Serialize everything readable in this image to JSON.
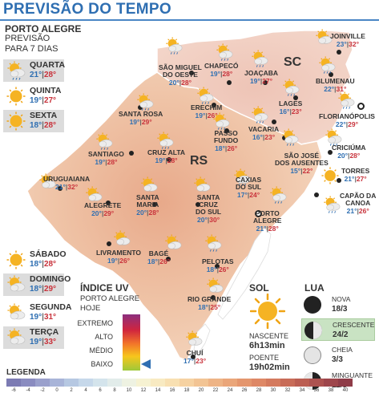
{
  "header": {
    "title": "PREVISÃO DO TEMPO"
  },
  "porto_alegre": {
    "city": "PORTO ALEGRE",
    "sub1": "PREVISÃO",
    "sub2": "PARA 7 DIAS",
    "days": [
      {
        "name": "QUARTA",
        "min": "21°",
        "max": "28°",
        "icon": "sun-rain-icon",
        "boxed": true
      },
      {
        "name": "QUINTA",
        "min": "19°",
        "max": "27°",
        "icon": "sun-icon",
        "boxed": false
      },
      {
        "name": "SEXTA",
        "min": "18°",
        "max": "28°",
        "icon": "sun-icon",
        "boxed": true
      },
      {
        "name": "SÁBADO",
        "min": "18°",
        "max": "28°",
        "icon": "sun-icon",
        "boxed": false
      },
      {
        "name": "DOMINGO",
        "min": "18°",
        "max": "29°",
        "icon": "sun-cloud-icon",
        "boxed": true
      },
      {
        "name": "SEGUNDA",
        "min": "19°",
        "max": "31°",
        "icon": "sun-cloud-icon",
        "boxed": false
      },
      {
        "name": "TERÇA",
        "min": "19°",
        "max": "33°",
        "icon": "sun-cloud-icon",
        "boxed": true
      }
    ]
  },
  "map": {
    "state_rs": "RS",
    "state_sc": "SC",
    "cities": [
      {
        "name": "SÃO MIGUEL\nDO OESTE",
        "min": "20°",
        "max": "28°",
        "icon": "sun-rain-icon"
      },
      {
        "name": "CHAPECÓ",
        "min": "19°",
        "max": "28°",
        "icon": "sun-rain-icon"
      },
      {
        "name": "JOAÇABA",
        "min": "19°",
        "max": "27°",
        "icon": "sun-rain-icon"
      },
      {
        "name": "JOINVILLE",
        "min": "23°",
        "max": "32°",
        "icon": "sun-cloud-icon"
      },
      {
        "name": "BLUMENAU",
        "min": "22°",
        "max": "31°",
        "icon": "sun-rain-icon"
      },
      {
        "name": "ERECHIM",
        "min": "19°",
        "max": "26°",
        "icon": "sun-rain-icon"
      },
      {
        "name": "LAGES",
        "min": "16°",
        "max": "23°",
        "icon": "sun-rain-icon"
      },
      {
        "name": "FLORIANÓPOLIS",
        "min": "22°",
        "max": "29°",
        "icon": "sun-rain-icon"
      },
      {
        "name": "SANTA ROSA",
        "min": "19°",
        "max": "29°",
        "icon": "sun-rain-icon"
      },
      {
        "name": "PASSO\nFUNDO",
        "min": "18°",
        "max": "26°",
        "icon": "sun-rain-icon"
      },
      {
        "name": "VACARIA",
        "min": "16°",
        "max": "23°",
        "icon": "sun-rain-icon"
      },
      {
        "name": "SANTIAGO",
        "min": "19°",
        "max": "28°",
        "icon": "sun-rain-icon"
      },
      {
        "name": "CRUZ ALTA",
        "min": "19°",
        "max": "28°",
        "icon": "sun-rain-icon"
      },
      {
        "name": "SÃO JOSÉ\nDOS AUSENTES",
        "min": "15°",
        "max": "22°",
        "icon": "sun-rain-icon"
      },
      {
        "name": "CRICIÚMA",
        "min": "20°",
        "max": "28°",
        "icon": "sun-rain-icon"
      },
      {
        "name": "URUGUAIANA",
        "min": "21°",
        "max": "32°",
        "icon": "sun-cloud-icon"
      },
      {
        "name": "CAXIAS\nDO SUL",
        "min": "17°",
        "max": "24°",
        "icon": "sun-rain-icon"
      },
      {
        "name": "TORRES",
        "min": "21°",
        "max": "27°",
        "icon": "sun-icon"
      },
      {
        "name": "ALEGRETE",
        "min": "20°",
        "max": "29°",
        "icon": "sun-cloud-icon"
      },
      {
        "name": "SANTA\nMARIA",
        "min": "20°",
        "max": "28°",
        "icon": "sun-cloud-icon"
      },
      {
        "name": "SANTA\nCRUZ\nDO SUL",
        "min": "20°",
        "max": "30°",
        "icon": "sun-cloud-icon"
      },
      {
        "name": "CAPÃO DA\nCANOA",
        "min": "21°",
        "max": "26°",
        "icon": "sun-rain-icon"
      },
      {
        "name": "PORTO\nALEGRE",
        "min": "21°",
        "max": "28°",
        "icon": "sun-rain-icon"
      },
      {
        "name": "LIVRAMENTO",
        "min": "19°",
        "max": "26°",
        "icon": "sun-cloud-icon"
      },
      {
        "name": "BAGÉ",
        "min": "18°",
        "max": "26°",
        "icon": "sun-cloud-icon"
      },
      {
        "name": "PELOTAS",
        "min": "18°",
        "max": "26°",
        "icon": "sun-rain-icon"
      },
      {
        "name": "RIO GRANDE",
        "min": "18°",
        "max": "25°",
        "icon": "sun-cloud-icon"
      },
      {
        "name": "CHUÍ",
        "min": "17°",
        "max": "23°",
        "icon": "sun-cloud-icon"
      }
    ]
  },
  "uv": {
    "title": "ÍNDICE UV",
    "sub1": "PORTO ALEGRE",
    "sub2": "HOJE",
    "levels": [
      "EXTREMO",
      "ALTO",
      "MÉDIO",
      "BAIXO"
    ],
    "current": "BAIXO"
  },
  "sol": {
    "title": "SOL",
    "nascente_label": "NASCENTE",
    "nascente": "6h13min",
    "poente_label": "POENTE",
    "poente": "19h02min"
  },
  "lua": {
    "title": "LUA",
    "phases": [
      {
        "name": "NOVA",
        "date": "18/3"
      },
      {
        "name": "CRESCENTE",
        "date": "24/2"
      },
      {
        "name": "CHEIA",
        "date": "3/3"
      },
      {
        "name": "MINGUANTE",
        "date": "11/3"
      }
    ]
  },
  "legend": {
    "title": "LEGENDA",
    "ticks": [
      "-6",
      "-4",
      "-2",
      "0",
      "2",
      "4",
      "6",
      "8",
      "10",
      "12",
      "14",
      "16",
      "18",
      "20",
      "22",
      "24",
      "26",
      "28",
      "30",
      "32",
      "34",
      "36",
      "38",
      "40"
    ],
    "colors": [
      "#7c7bb3",
      "#8a8cc0",
      "#9aa0cc",
      "#a8b4d8",
      "#b6c8e2",
      "#c6d8ea",
      "#d4e4ec",
      "#e2ecea",
      "#eef2e2",
      "#f6f2d2",
      "#f8eac2",
      "#f8e0b2",
      "#f6d2a2",
      "#f2c494",
      "#eeb486",
      "#eaa67a",
      "#e4966e",
      "#de8866",
      "#d47a5e",
      "#c86c58",
      "#bb5e52",
      "#ad5250",
      "#9e464c",
      "#8f3c48"
    ]
  }
}
